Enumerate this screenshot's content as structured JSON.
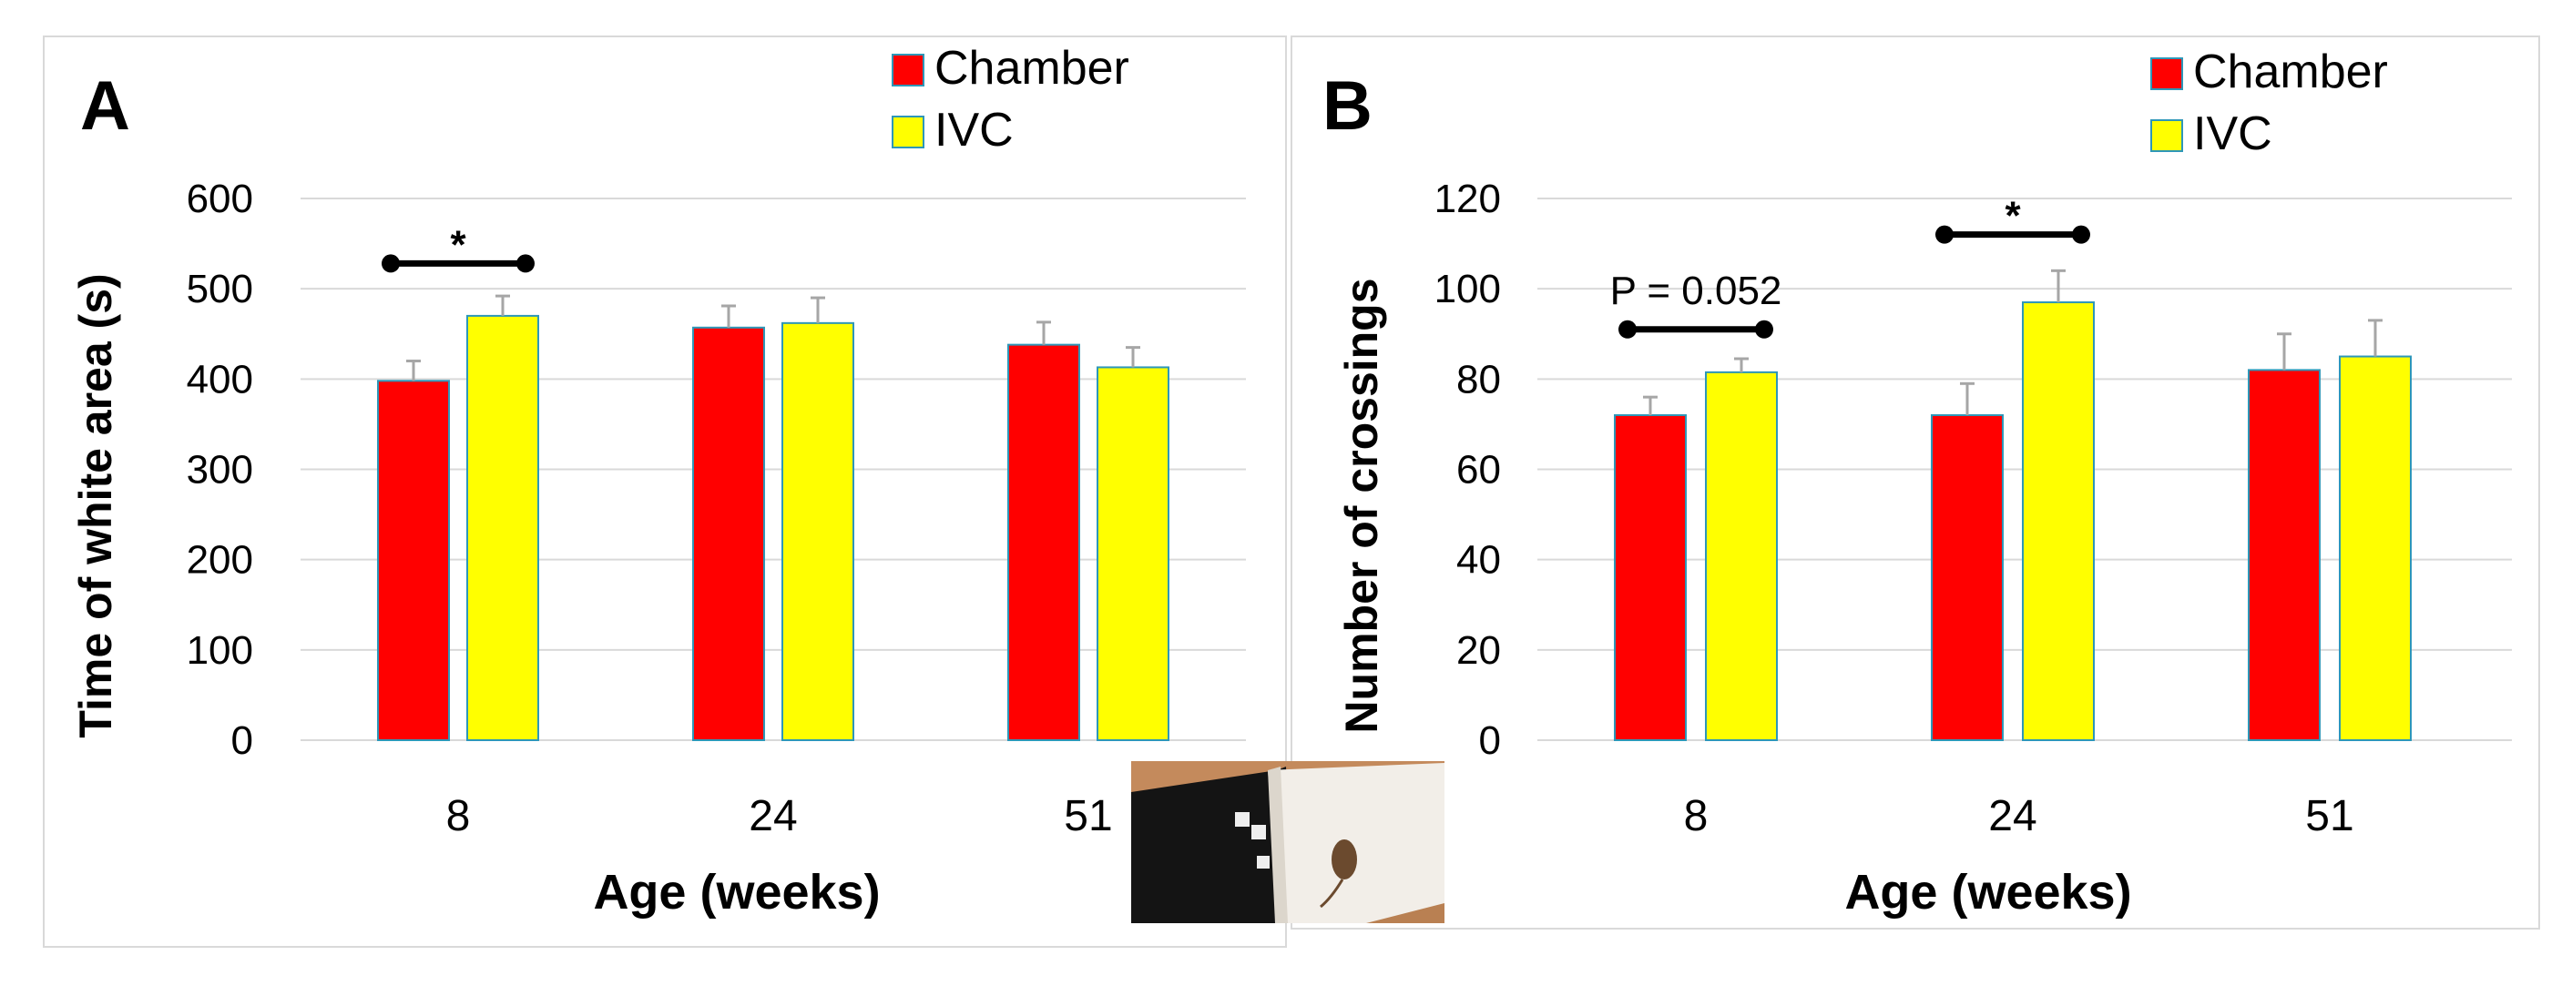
{
  "colors": {
    "chamber": "#ff0000",
    "ivc": "#ffff00",
    "bar_edge": "#2e97b8",
    "grid": "#d9d9d9",
    "error_bar": "#a6a6a6",
    "text": "#000000"
  },
  "legend": {
    "chamber": "Chamber",
    "ivc": "IVC"
  },
  "chart_data": [
    {
      "type": "bar",
      "panel_label": "A",
      "categories": [
        "8",
        "24",
        "51"
      ],
      "series": [
        {
          "name": "Chamber",
          "values": [
            398,
            457,
            438
          ],
          "errors": [
            22,
            24,
            25
          ]
        },
        {
          "name": "IVC",
          "values": [
            470,
            462,
            413
          ],
          "errors": [
            22,
            28,
            22
          ]
        }
      ],
      "xlabel": "Age (weeks)",
      "ylabel": "Time of white area (s)",
      "ylim": [
        0,
        600
      ],
      "yticks": [
        "0",
        "100",
        "200",
        "300",
        "400",
        "500",
        "600"
      ],
      "grid": true,
      "legend_position": "top-right",
      "annotations": [
        {
          "category": "8",
          "text": "*",
          "y_value": 528
        }
      ]
    },
    {
      "type": "bar",
      "panel_label": "B",
      "categories": [
        "8",
        "24",
        "51"
      ],
      "series": [
        {
          "name": "Chamber",
          "values": [
            72,
            72,
            82
          ],
          "errors": [
            4,
            7,
            8
          ]
        },
        {
          "name": "IVC",
          "values": [
            81.5,
            97,
            85
          ],
          "errors": [
            3,
            7,
            8
          ]
        }
      ],
      "xlabel": "Age (weeks)",
      "ylabel": "Number of crossings",
      "ylim": [
        0,
        120
      ],
      "yticks": [
        "0",
        "20",
        "40",
        "60",
        "80",
        "100",
        "120"
      ],
      "grid": true,
      "legend_position": "top-right",
      "annotations": [
        {
          "category": "8",
          "text": "P = 0.052",
          "y_value": 91
        },
        {
          "category": "24",
          "text": "*",
          "y_value": 112
        }
      ]
    }
  ]
}
